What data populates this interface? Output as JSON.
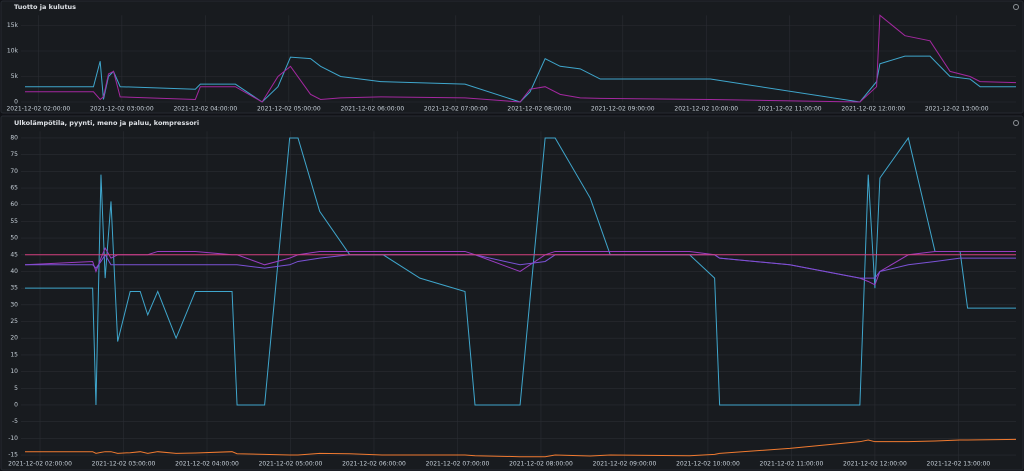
{
  "chart_data": [
    {
      "type": "line",
      "title": "Tuotto ja kulutus",
      "x": [
        1.84,
        2.66,
        2.74,
        2.78,
        2.84,
        2.9,
        2.98,
        3.88,
        3.94,
        4.36,
        4.68,
        4.87,
        5.02,
        5.26,
        5.38,
        5.62,
        6.1,
        7.11,
        7.77,
        7.89,
        8.07,
        8.25,
        8.49,
        8.73,
        10.05,
        11.84,
        12.04,
        12.08,
        12.38,
        12.68,
        12.92,
        13.16,
        13.28,
        13.71
      ],
      "series": [
        {
          "color": "#3fa6cc",
          "values": [
            3000,
            3000,
            8000,
            500,
            5000,
            6000,
            3000,
            2500,
            3500,
            3500,
            0,
            3000,
            8800,
            8500,
            7000,
            5000,
            4000,
            3500,
            0,
            2000,
            8500,
            7000,
            6500,
            4500,
            4500,
            0,
            4000,
            7500,
            9000,
            9000,
            5000,
            4500,
            3000,
            3000
          ]
        },
        {
          "color": "#a3289f",
          "values": [
            2000,
            2000,
            500,
            1000,
            5500,
            6000,
            1000,
            500,
            3000,
            3000,
            0,
            5000,
            7000,
            1500,
            500,
            800,
            1000,
            800,
            0,
            2500,
            3000,
            1500,
            800,
            700,
            500,
            0,
            3000,
            17000,
            13000,
            12000,
            6000,
            5000,
            4000,
            3800
          ]
        }
      ],
      "xlim": [
        1.84,
        13.71
      ],
      "xticks": [
        {
          "value": 2,
          "label": "2021-12-02 02:00:00"
        },
        {
          "value": 3,
          "label": "2021-12-02 03:00:00"
        },
        {
          "value": 4,
          "label": "2021-12-02 04:00:00"
        },
        {
          "value": 5,
          "label": "2021-12-02 05:00:00"
        },
        {
          "value": 6,
          "label": "2021-12-02 06:00:00"
        },
        {
          "value": 7,
          "label": "2021-12-02 07:00:00"
        },
        {
          "value": 8,
          "label": "2021-12-02 08:00:00"
        },
        {
          "value": 9,
          "label": "2021-12-02 09:00:00"
        },
        {
          "value": 10,
          "label": "2021-12-02 10:00:00"
        },
        {
          "value": 11,
          "label": "2021-12-02 11:00:00"
        },
        {
          "value": 12,
          "label": "2021-12-02 12:00:00"
        },
        {
          "value": 13,
          "label": "2021-12-02 13:00:00"
        }
      ],
      "ylim": [
        0,
        17000
      ],
      "yticks": [
        0,
        {
          "value": 5000,
          "label": "5k"
        },
        {
          "value": 10000,
          "label": "10k"
        },
        {
          "value": 15000,
          "label": "15k"
        }
      ],
      "grid": true
    },
    {
      "type": "line",
      "title": "Ulkolämpötila, pyynti, meno ja paluu, kompressori",
      "x": [
        1.82,
        2.63,
        2.67,
        2.73,
        2.78,
        2.85,
        2.93,
        3.08,
        3.2,
        3.29,
        3.41,
        3.63,
        3.86,
        4.3,
        4.36,
        4.69,
        4.99,
        5.09,
        5.35,
        5.71,
        6.11,
        6.55,
        7.09,
        7.21,
        7.75,
        8.05,
        8.17,
        8.59,
        8.83,
        9.78,
        10.08,
        10.14,
        10.98,
        11.82,
        11.92,
        12.0,
        12.06,
        12.4,
        12.72,
        13.02,
        13.11,
        13.69
      ],
      "series": [
        {
          "color": "#3fa6cc",
          "values": [
            35,
            35,
            0,
            69,
            38,
            61,
            19,
            34,
            34,
            27,
            34,
            20,
            34,
            34,
            0,
            0,
            80,
            80,
            58,
            45,
            45,
            38,
            34,
            0,
            0,
            80,
            80,
            62,
            45,
            45,
            38,
            0,
            0,
            0,
            69,
            35,
            68,
            80,
            46,
            46,
            29,
            29
          ]
        },
        {
          "color": "#9a3cc0",
          "values": [
            42,
            43,
            40,
            44,
            47,
            44,
            45,
            45,
            45,
            45,
            46,
            46,
            46,
            45,
            45,
            42,
            44,
            45,
            46,
            46,
            46,
            46,
            46,
            45,
            40,
            45,
            46,
            46,
            46,
            46,
            45,
            44,
            42,
            38,
            37,
            36,
            40,
            45,
            46,
            46,
            46,
            46
          ]
        },
        {
          "color": "#7b52d6",
          "values": [
            42,
            42,
            41,
            43,
            45,
            42,
            42,
            42,
            42,
            42,
            42,
            42,
            42,
            42,
            42,
            41,
            42,
            43,
            44,
            45,
            45,
            45,
            45,
            45,
            42,
            43,
            45,
            45,
            45,
            45,
            45,
            44,
            42,
            38,
            38,
            38,
            40,
            42,
            43,
            44,
            44,
            44
          ]
        },
        {
          "color": "#d2407f",
          "values": [
            45,
            45,
            45,
            45,
            45,
            45,
            45,
            45,
            45,
            45,
            45,
            45,
            45,
            45,
            45,
            45,
            45,
            45,
            45,
            45,
            45,
            45,
            45,
            45,
            45,
            45,
            45,
            45,
            45,
            45,
            45,
            45,
            45,
            45,
            45,
            45,
            45,
            45,
            45,
            45,
            45,
            45
          ]
        },
        {
          "color": "#f07a30",
          "values": [
            -14,
            -14,
            -14.5,
            -14.2,
            -14,
            -14,
            -14.5,
            -14.3,
            -14,
            -14.5,
            -14,
            -14.5,
            -14.4,
            -14,
            -14.6,
            -14.8,
            -15,
            -15,
            -14.5,
            -14.6,
            -15,
            -15,
            -15,
            -15.2,
            -15.5,
            -15.5,
            -15,
            -15.3,
            -15,
            -15.2,
            -14.8,
            -14.5,
            -13,
            -11,
            -10.5,
            -11,
            -11,
            -11,
            -10.8,
            -10.5,
            -10.5,
            -10.3
          ]
        }
      ],
      "xlim": [
        1.82,
        13.69
      ],
      "xticks": [
        {
          "value": 2,
          "label": "2021-12-02 02:00:00"
        },
        {
          "value": 3,
          "label": "2021-12-02 03:00:00"
        },
        {
          "value": 4,
          "label": "2021-12-02 04:00:00"
        },
        {
          "value": 5,
          "label": "2021-12-02 05:00:00"
        },
        {
          "value": 6,
          "label": "2021-12-02 06:00:00"
        },
        {
          "value": 7,
          "label": "2021-12-02 07:00:00"
        },
        {
          "value": 8,
          "label": "2021-12-02 08:00:00"
        },
        {
          "value": 9,
          "label": "2021-12-02 09:00:00"
        },
        {
          "value": 10,
          "label": "2021-12-02 10:00:00"
        },
        {
          "value": 11,
          "label": "2021-12-02 11:00:00"
        },
        {
          "value": 12,
          "label": "2021-12-02 12:00:00"
        },
        {
          "value": 13,
          "label": "2021-12-02 13:00:00"
        }
      ],
      "ylim": [
        -17,
        82
      ],
      "yticks": [
        -15,
        -10,
        -5,
        0,
        5,
        10,
        15,
        20,
        25,
        30,
        35,
        40,
        45,
        50,
        55,
        60,
        65,
        70,
        75,
        80
      ],
      "grid": true
    }
  ]
}
